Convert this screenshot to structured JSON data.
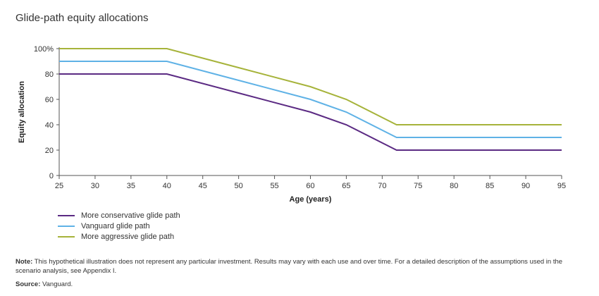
{
  "title": "Glide-path equity allocations",
  "colors": {
    "conservative": "#5b2a83",
    "vanguard": "#5fb2e6",
    "aggressive": "#a6b33a",
    "axis": "#555555"
  },
  "chart_data": {
    "type": "line",
    "title": "Glide-path equity allocations",
    "xlabel": "Age (years)",
    "ylabel": "Equity allocation",
    "xlim": [
      25,
      95
    ],
    "ylim": [
      0,
      100
    ],
    "x_ticks": [
      25,
      30,
      35,
      40,
      45,
      50,
      55,
      60,
      65,
      70,
      75,
      80,
      85,
      90,
      95
    ],
    "y_ticks": [
      0,
      20,
      40,
      60,
      80,
      100
    ],
    "y_tick_labels": [
      "0",
      "20",
      "40",
      "60",
      "80",
      "100%"
    ],
    "grid": false,
    "legend_position": "bottom-left",
    "series": [
      {
        "name": "More conservative glide path",
        "color": "#5b2a83",
        "points": [
          [
            25,
            80
          ],
          [
            40,
            80
          ],
          [
            50,
            65
          ],
          [
            60,
            50
          ],
          [
            65,
            40
          ],
          [
            72,
            20
          ],
          [
            95,
            20
          ]
        ]
      },
      {
        "name": "Vanguard glide path",
        "color": "#5fb2e6",
        "points": [
          [
            25,
            90
          ],
          [
            40,
            90
          ],
          [
            50,
            75
          ],
          [
            60,
            60
          ],
          [
            65,
            50
          ],
          [
            72,
            30
          ],
          [
            95,
            30
          ]
        ]
      },
      {
        "name": "More aggressive glide path",
        "color": "#a6b33a",
        "points": [
          [
            25,
            100
          ],
          [
            40,
            100
          ],
          [
            50,
            85
          ],
          [
            60,
            70
          ],
          [
            65,
            60
          ],
          [
            72,
            40
          ],
          [
            95,
            40
          ]
        ]
      }
    ]
  },
  "legend": [
    {
      "label": "More conservative glide path",
      "color": "#5b2a83"
    },
    {
      "label": "Vanguard glide path",
      "color": "#5fb2e6"
    },
    {
      "label": "More aggressive glide path",
      "color": "#a6b33a"
    }
  ],
  "note": {
    "label": "Note:",
    "text": " This hypothetical illustration does not represent any particular investment. Results may vary with each use and over time. For a detailed description of the assumptions used in the scenario analysis, see Appendix I."
  },
  "source": {
    "label": "Source:",
    "text": " Vanguard."
  }
}
